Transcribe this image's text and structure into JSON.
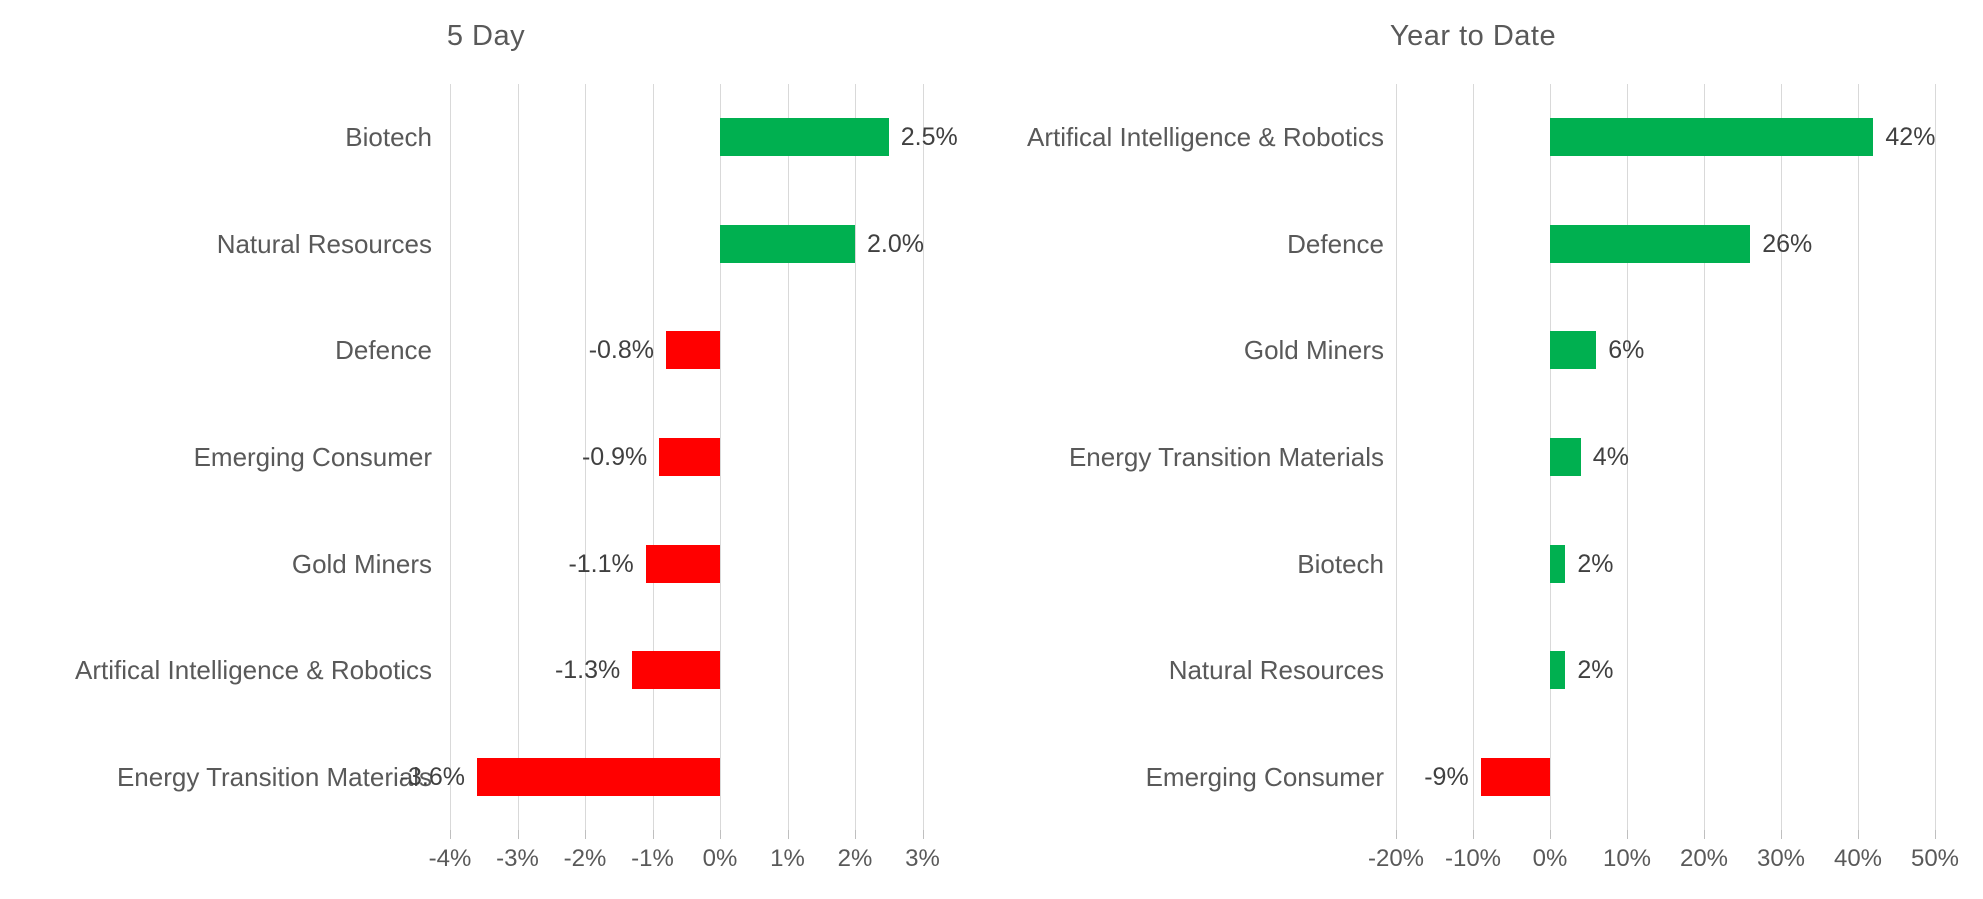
{
  "page": {
    "background": "#FFFFFF"
  },
  "colors": {
    "positive": "#00B050",
    "negative": "#FF0000",
    "gridline": "#D9D9D9",
    "title_text": "#595959",
    "category_text": "#595959",
    "axis_text": "#595959",
    "value_text": "#404040"
  },
  "chart_data": [
    {
      "type": "bar",
      "orientation": "horizontal",
      "title": "5 Day",
      "xlabel": "",
      "ylabel": "",
      "xlim": [
        -4,
        3
      ],
      "tick_step": 1,
      "tick_labels": [
        "-4%",
        "-3%",
        "-2%",
        "-1%",
        "0%",
        "1%",
        "2%",
        "3%"
      ],
      "grid": true,
      "legend": false,
      "categories": [
        "Biotech",
        "Natural Resources",
        "Defence",
        "Emerging Consumer",
        "Gold Miners",
        "Artifical Intelligence & Robotics",
        "Energy Transition Materials"
      ],
      "values": [
        2.5,
        2.0,
        -0.8,
        -0.9,
        -1.1,
        -1.3,
        -3.6
      ],
      "value_labels": [
        "2.5%",
        "2.0%",
        "-0.8%",
        "-0.9%",
        "-1.1%",
        "-1.3%",
        "-3.6%"
      ]
    },
    {
      "type": "bar",
      "orientation": "horizontal",
      "title": "Year to Date",
      "xlabel": "",
      "ylabel": "",
      "xlim": [
        -20,
        50
      ],
      "tick_step": 10,
      "tick_labels": [
        "-20%",
        "-10%",
        "0%",
        "10%",
        "20%",
        "30%",
        "40%",
        "50%"
      ],
      "grid": true,
      "legend": false,
      "categories": [
        "Artifical Intelligence & Robotics",
        "Defence",
        "Gold Miners",
        "Energy Transition Materials",
        "Biotech",
        "Natural Resources",
        "Emerging Consumer"
      ],
      "values": [
        42,
        26,
        6,
        4,
        2,
        2,
        -9
      ],
      "value_labels": [
        "42%",
        "26%",
        "6%",
        "4%",
        "2%",
        "2%",
        "-9%"
      ]
    }
  ]
}
